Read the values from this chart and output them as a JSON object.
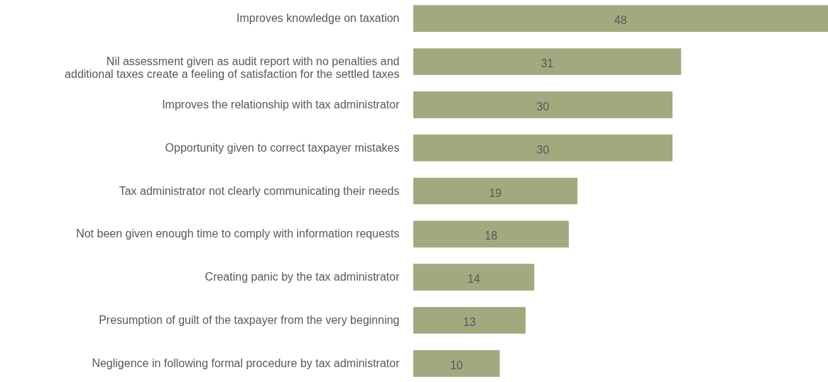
{
  "chart_data": {
    "type": "bar",
    "orientation": "horizontal",
    "data_labels": true,
    "color": "#a3a97f",
    "categories": [
      "Improves knowledge on taxation",
      "Nil assessment given as audit report with no penalties and\nadditional taxes create a feeling of satisfaction for the settled taxes",
      "Improves the relationship with tax administrator",
      "Opportunity given to correct taxpayer mistakes",
      "Tax administrator not clearly communicating their needs",
      "Not been given enough time to comply with information requests",
      "Creating panic by the tax administrator",
      "Presumption of guilt of the taxpayer from the very beginning",
      "Negligence in following formal procedure by tax administrator"
    ],
    "values": [
      48,
      31,
      30,
      30,
      19,
      18,
      14,
      13,
      10
    ]
  }
}
